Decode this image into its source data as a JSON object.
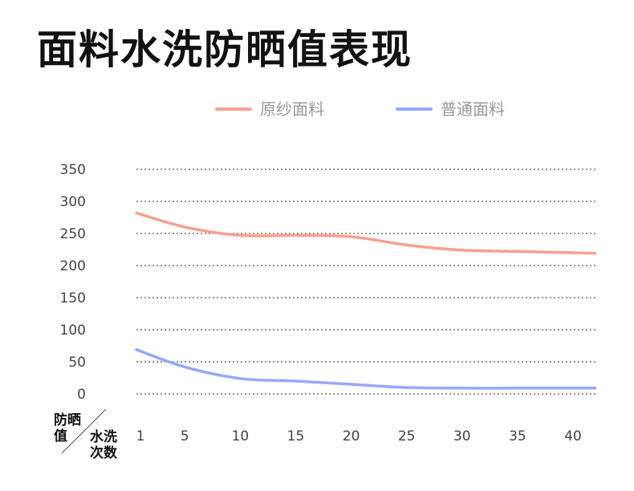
{
  "title": "面料水洗防晒值表现",
  "chart_data": {
    "type": "line",
    "title": "面料水洗防晒值表现",
    "xlabel": "水洗次数",
    "ylabel": "防晒值",
    "ylim": [
      0,
      350
    ],
    "xlim": [
      1,
      42
    ],
    "yticks": [
      0,
      50,
      100,
      150,
      200,
      250,
      300,
      350
    ],
    "xticks": [
      1,
      5,
      10,
      15,
      20,
      25,
      30,
      35,
      40
    ],
    "grid": "horizontal dotted",
    "legend_position": "top-center",
    "x": [
      1,
      5,
      10,
      15,
      20,
      25,
      30,
      35,
      40,
      42
    ],
    "series": [
      {
        "name": "原纱面料",
        "color": "#F7A08E",
        "values": [
          282,
          260,
          247,
          247,
          245,
          232,
          224,
          222,
          220,
          219
        ]
      },
      {
        "name": "普通面料",
        "color": "#96A8FA",
        "values": [
          69,
          42,
          24,
          20,
          15,
          10,
          9,
          9,
          9,
          9
        ]
      }
    ]
  }
}
